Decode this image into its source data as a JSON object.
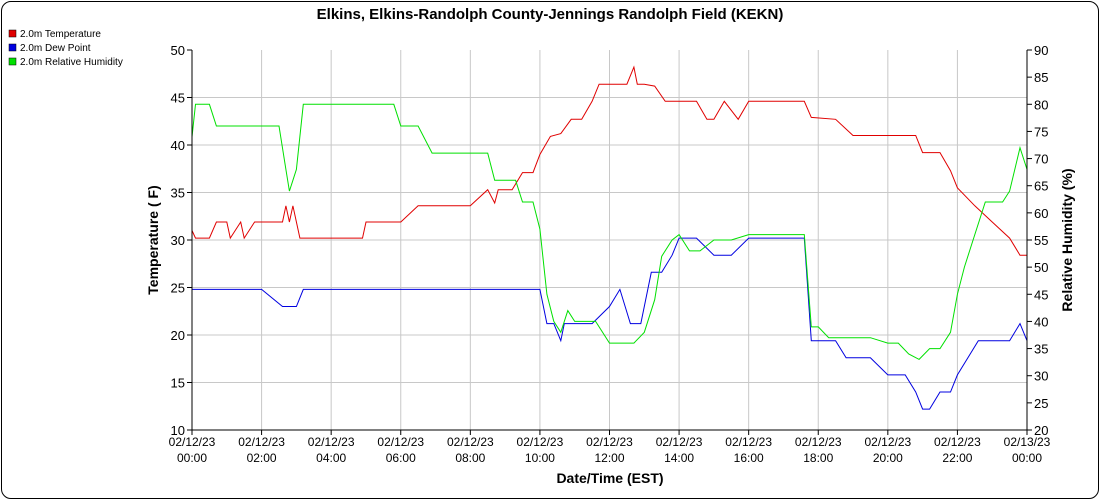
{
  "chart_data": {
    "type": "line",
    "title": "Elkins, Elkins-Randolph County-Jennings Randolph Field (KEKN)",
    "xlabel": "Date/Time (EST)",
    "ylabel_left": "Temperature ( F)",
    "ylabel_right": "Relative Humidity (%)",
    "ylim_left": [
      10,
      50
    ],
    "ylim_right": [
      20,
      90
    ],
    "yticks_left": [
      "10",
      "15",
      "20",
      "25",
      "30",
      "35",
      "40",
      "45",
      "50"
    ],
    "yticks_right": [
      "20",
      "25",
      "30",
      "35",
      "40",
      "45",
      "50",
      "55",
      "60",
      "65",
      "70",
      "75",
      "80",
      "85",
      "90"
    ],
    "x_range_hours": [
      0,
      24
    ],
    "x_ticks": [
      {
        "date": "02/12/23",
        "time": "00:00"
      },
      {
        "date": "02/12/23",
        "time": "02:00"
      },
      {
        "date": "02/12/23",
        "time": "04:00"
      },
      {
        "date": "02/12/23",
        "time": "06:00"
      },
      {
        "date": "02/12/23",
        "time": "08:00"
      },
      {
        "date": "02/12/23",
        "time": "10:00"
      },
      {
        "date": "02/12/23",
        "time": "12:00"
      },
      {
        "date": "02/12/23",
        "time": "14:00"
      },
      {
        "date": "02/12/23",
        "time": "16:00"
      },
      {
        "date": "02/12/23",
        "time": "18:00"
      },
      {
        "date": "02/12/23",
        "time": "20:00"
      },
      {
        "date": "02/12/23",
        "time": "22:00"
      },
      {
        "date": "02/13/23",
        "time": "00:00"
      }
    ],
    "grid": true,
    "legend_position": "top-left outside",
    "series": [
      {
        "name": "2.0m Temperature",
        "color": "#e00000",
        "axis": "left",
        "x": [
          0,
          0.1,
          0.5,
          0.7,
          1.0,
          1.1,
          1.4,
          1.5,
          1.8,
          2.0,
          2.6,
          2.7,
          2.8,
          2.9,
          3.0,
          3.1,
          3.2,
          3.5,
          4.0,
          4.5,
          4.9,
          5.0,
          5.1,
          5.4,
          6.0,
          6.5,
          6.9,
          7.0,
          7.5,
          8.0,
          8.5,
          8.7,
          8.8,
          9.0,
          9.2,
          9.5,
          9.7,
          9.8,
          10.0,
          10.3,
          10.6,
          10.9,
          11.2,
          11.5,
          11.7,
          12.0,
          12.5,
          12.7,
          12.8,
          13.0,
          13.3,
          13.6,
          13.8,
          14.0,
          14.5,
          14.8,
          15.0,
          15.3,
          15.7,
          16.0,
          16.3,
          16.8,
          17.2,
          17.6,
          17.8,
          18.5,
          19.0,
          19.5,
          20.0,
          20.5,
          20.8,
          21.0,
          21.5,
          21.8,
          22.0,
          22.5,
          23.0,
          23.5,
          23.8,
          24.0
        ],
        "values": [
          31,
          30.2,
          30.2,
          31.9,
          31.9,
          30.2,
          31.9,
          30.2,
          31.9,
          31.9,
          31.9,
          33.6,
          31.9,
          33.6,
          31.9,
          30.2,
          30.2,
          30.2,
          30.2,
          30.2,
          30.2,
          31.9,
          31.9,
          31.9,
          31.9,
          33.6,
          33.6,
          33.6,
          33.6,
          33.6,
          35.3,
          33.9,
          35.3,
          35.3,
          35.3,
          37.1,
          37.1,
          37.1,
          39,
          40.9,
          41.2,
          42.7,
          42.7,
          44.6,
          46.4,
          46.4,
          46.4,
          48.2,
          46.4,
          46.4,
          46.2,
          44.6,
          44.6,
          44.6,
          44.6,
          42.7,
          42.7,
          44.6,
          42.7,
          44.6,
          44.6,
          44.6,
          44.6,
          44.6,
          42.9,
          42.7,
          41,
          41,
          41,
          41,
          41,
          39.2,
          39.2,
          37.3,
          35.5,
          33.6,
          31.9,
          30.2,
          28.4,
          28.4
        ]
      },
      {
        "name": "2.0m Dew Point",
        "color": "#0000e0",
        "axis": "left",
        "x": [
          0,
          0.5,
          0.8,
          1.0,
          1.5,
          2.0,
          2.6,
          3.0,
          3.2,
          3.5,
          4.0,
          5.0,
          6.0,
          7.0,
          8.0,
          9.0,
          9.5,
          9.8,
          10.0,
          10.2,
          10.4,
          10.6,
          10.7,
          10.8,
          11.0,
          11.5,
          12.0,
          12.3,
          12.6,
          12.9,
          13.2,
          13.5,
          13.8,
          14.0,
          14.5,
          15.0,
          15.5,
          16.0,
          16.5,
          17.0,
          17.5,
          17.6,
          17.8,
          18.0,
          18.2,
          18.5,
          18.8,
          19.0,
          19.5,
          20.0,
          20.5,
          20.8,
          21.0,
          21.2,
          21.5,
          21.8,
          22.0,
          22.3,
          22.6,
          23.0,
          23.5,
          23.8,
          24.0
        ],
        "values": [
          24.8,
          24.8,
          24.8,
          24.8,
          24.8,
          24.8,
          23.0,
          23.0,
          24.8,
          24.8,
          24.8,
          24.8,
          24.8,
          24.8,
          24.8,
          24.8,
          24.8,
          24.8,
          24.8,
          21.2,
          21.2,
          19.4,
          21.2,
          21.2,
          21.2,
          21.2,
          23.0,
          24.8,
          21.2,
          21.2,
          26.6,
          26.6,
          28.4,
          30.2,
          30.2,
          28.4,
          28.4,
          30.2,
          30.2,
          30.2,
          30.2,
          30.2,
          19.4,
          19.4,
          19.4,
          19.4,
          17.6,
          17.6,
          17.6,
          15.8,
          15.8,
          14.0,
          12.2,
          12.2,
          14.0,
          14.0,
          15.8,
          17.6,
          19.4,
          19.4,
          19.4,
          21.2,
          19.4
        ]
      },
      {
        "name": "2.0m Relative Humidity",
        "color": "#00e000",
        "axis": "right",
        "x": [
          0,
          0.1,
          0.3,
          0.5,
          0.7,
          1.0,
          1.3,
          1.6,
          1.8,
          2.0,
          2.5,
          2.7,
          2.8,
          2.9,
          3.0,
          3.2,
          3.6,
          4.0,
          4.5,
          5.0,
          5.5,
          5.8,
          6.0,
          6.5,
          6.9,
          7.0,
          7.5,
          8.0,
          8.5,
          8.7,
          9.0,
          9.3,
          9.5,
          9.8,
          10.0,
          10.2,
          10.4,
          10.6,
          10.8,
          11.0,
          11.3,
          11.6,
          12.0,
          12.4,
          12.7,
          13.0,
          13.3,
          13.5,
          13.8,
          14.0,
          14.3,
          14.6,
          15.0,
          15.5,
          16.0,
          16.5,
          17.0,
          17.5,
          17.6,
          17.8,
          18.0,
          18.3,
          18.6,
          19.0,
          19.5,
          20.0,
          20.3,
          20.6,
          20.9,
          21.2,
          21.5,
          21.8,
          22.0,
          22.2,
          22.5,
          22.8,
          23.0,
          23.3,
          23.5,
          23.8,
          24.0
        ],
        "values": [
          74,
          80,
          80,
          80,
          76,
          76,
          76,
          76,
          76,
          76,
          76,
          68,
          64,
          66,
          68,
          80,
          80,
          80,
          80,
          80,
          80,
          80,
          76,
          76,
          71,
          71,
          71,
          71,
          71,
          66,
          66,
          66,
          62,
          62,
          57,
          45,
          40,
          38,
          42,
          40,
          40,
          40,
          36,
          36,
          36,
          38,
          44,
          52,
          55,
          56,
          53,
          53,
          55,
          55,
          56,
          56,
          56,
          56,
          56,
          39,
          39,
          37,
          37,
          37,
          37,
          36,
          36,
          34,
          33,
          35,
          35,
          38,
          45,
          50,
          56,
          62,
          62,
          62,
          64,
          72,
          68
        ]
      }
    ]
  }
}
